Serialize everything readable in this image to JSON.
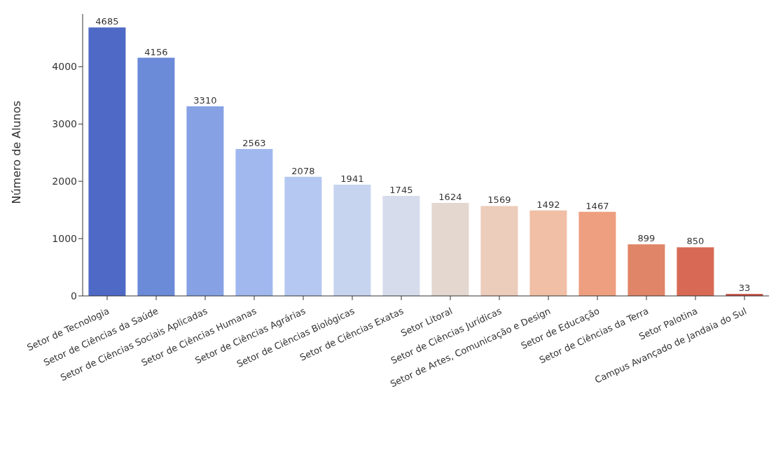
{
  "chart_data": {
    "type": "bar",
    "ylabel": "Número de Alunos",
    "categories": [
      "Setor de Tecnologia",
      "Setor de Ciências da Saúde",
      "Setor de Ciências Sociais Aplicadas",
      "Setor de Ciências Humanas",
      "Setor de Ciências Agrárias",
      "Setor de Ciências Biológicas",
      "Setor de Ciências Exatas",
      "Setor Litoral",
      "Setor de Ciências Jurídicas",
      "Setor de Artes, Comunicação e Design",
      "Setor de Educação",
      "Setor de Ciências da Terra",
      "Setor Palotina",
      "Campus Avançado de Jandaia do Sul"
    ],
    "values": [
      4685,
      4156,
      3310,
      2563,
      2078,
      1941,
      1745,
      1624,
      1569,
      1492,
      1467,
      899,
      850,
      33
    ],
    "colors": [
      "#4f69c6",
      "#6b8ad8",
      "#86a2e4",
      "#a0b8ee",
      "#b5c8f1",
      "#c6d4f0",
      "#d6dcec",
      "#e3d7d0",
      "#ecccbb",
      "#f0bfa5",
      "#ee9f80",
      "#e08567",
      "#d86a55",
      "#c5493d"
    ],
    "ylim": [
      0,
      4920
    ],
    "yticks": [
      0,
      1000,
      2000,
      3000,
      4000
    ],
    "data_labels": true,
    "grid": false,
    "legend": false
  }
}
